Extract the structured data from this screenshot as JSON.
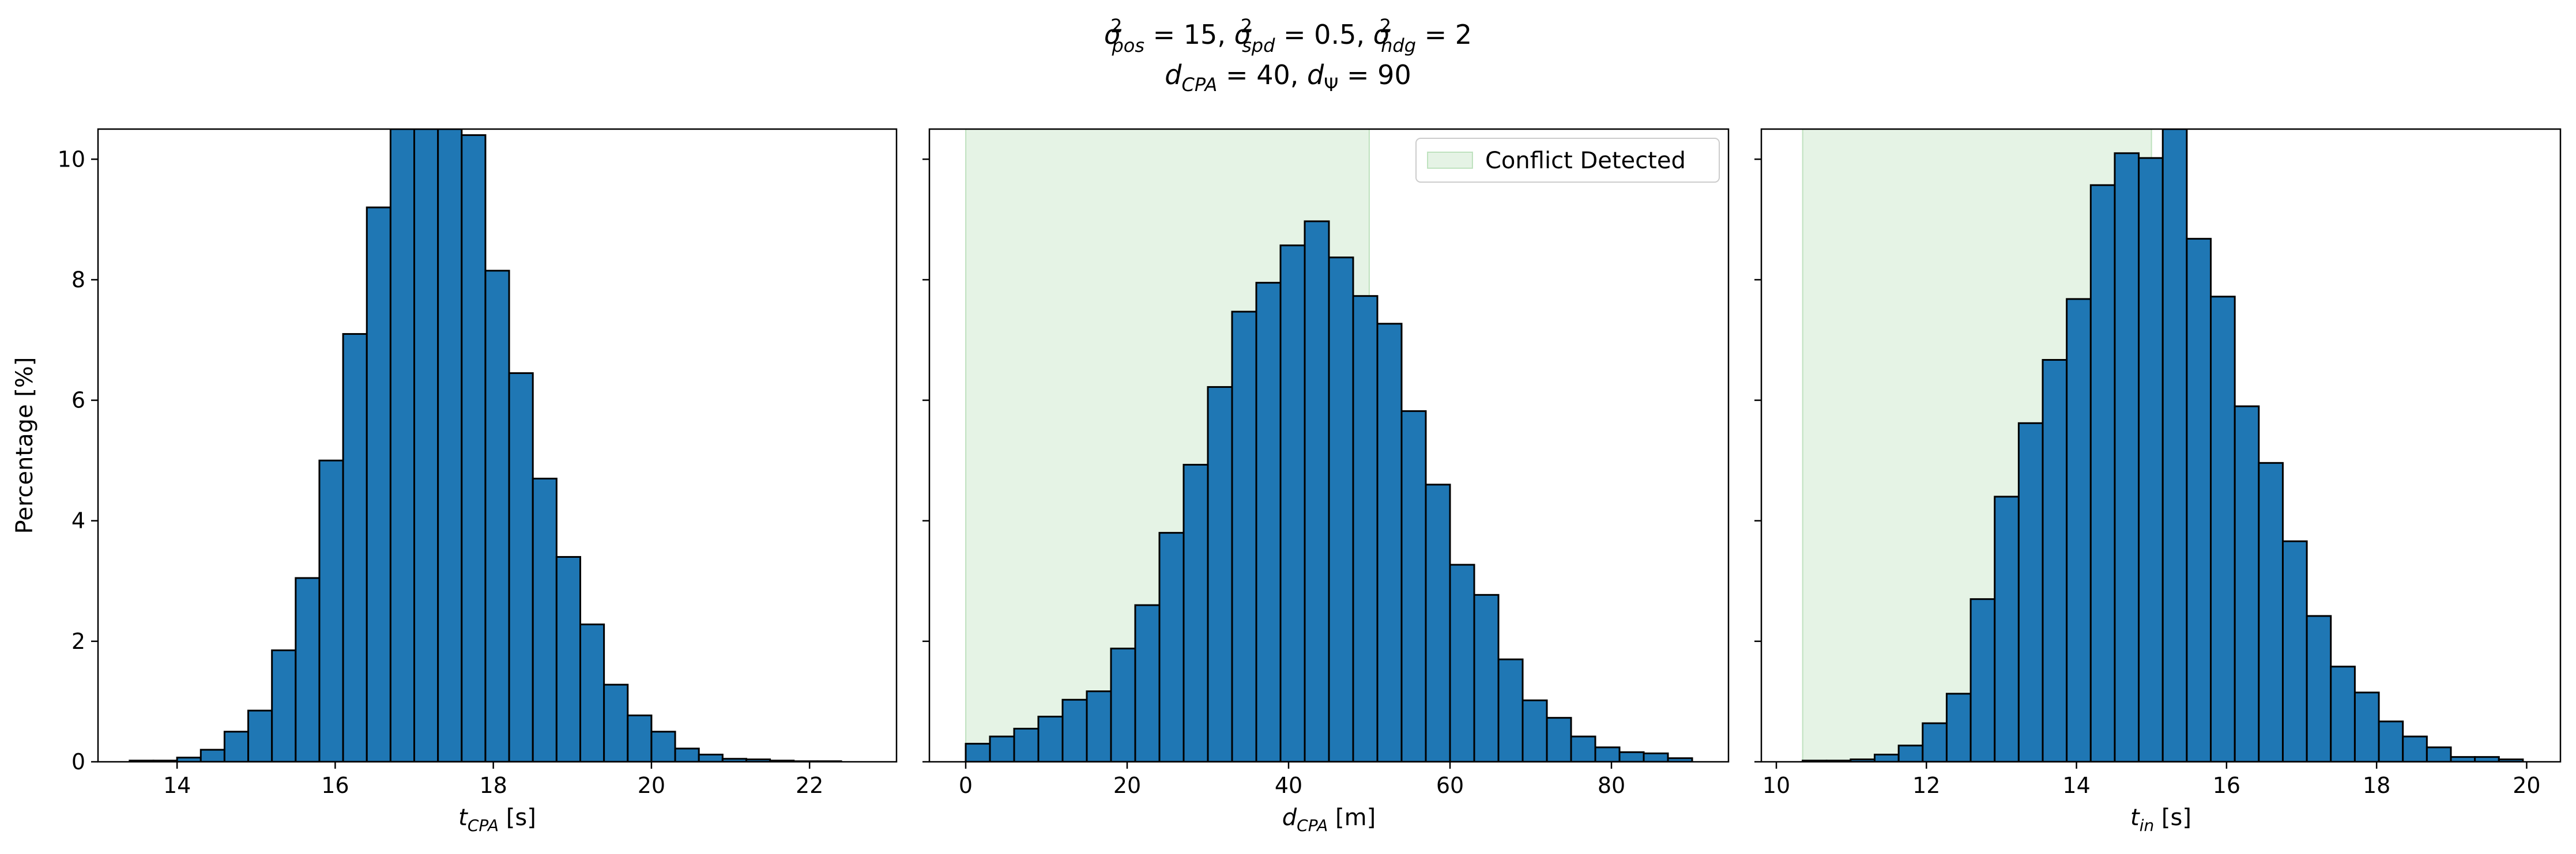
{
  "figure": {
    "title_line1": "σ²pos = 15, σ²spd = 0.5, σ²hdg = 2",
    "title_line2": "dCPA = 40, dΨ = 90"
  },
  "chart_data": [
    {
      "type": "bar",
      "title": "",
      "xlabel": "t_CPA [s]",
      "ylabel": "Percentage [%]",
      "xlim": [
        13.0,
        23.1
      ],
      "ylim": [
        0,
        10.5
      ],
      "xticks": [
        14,
        16,
        18,
        20,
        22
      ],
      "yticks": [
        0,
        2,
        4,
        6,
        8,
        10
      ],
      "grid": false,
      "bar_color": "#1f77b4",
      "bin_edges": [
        13.4,
        13.7,
        14.0,
        14.3,
        14.6,
        14.9,
        15.2,
        15.5,
        15.8,
        16.1,
        16.4,
        16.7,
        17.0,
        17.3,
        17.6,
        17.9,
        18.2,
        18.5,
        18.8,
        19.1,
        19.4,
        19.7,
        20.0,
        20.3,
        20.6,
        20.9,
        21.2,
        21.5,
        21.8,
        22.1,
        22.4
      ],
      "values": [
        0.02,
        0.02,
        0.07,
        0.2,
        0.5,
        0.85,
        1.85,
        3.05,
        5.0,
        7.1,
        9.2,
        10.5,
        10.5,
        10.5,
        10.4,
        8.15,
        6.45,
        4.7,
        3.4,
        2.28,
        1.28,
        0.77,
        0.5,
        0.22,
        0.12,
        0.05,
        0.04,
        0.02,
        0.01,
        0.01
      ]
    },
    {
      "type": "bar",
      "title": "",
      "xlabel": "d_CPA [m]",
      "ylabel": "",
      "xlim": [
        -4.5,
        94.5
      ],
      "ylim": [
        0,
        10.5
      ],
      "xticks": [
        0,
        20,
        40,
        60,
        80
      ],
      "yticks": [
        0,
        2,
        4,
        6,
        8,
        10
      ],
      "grid": false,
      "bar_color": "#1f77b4",
      "shaded_region": {
        "x0": 0,
        "x1": 50,
        "label": "Conflict Detected",
        "color": "#2ca02c"
      },
      "legend": {
        "position": "upper right",
        "entries": [
          "Conflict Detected"
        ]
      },
      "bin_edges": [
        0,
        3,
        6,
        9,
        12,
        15,
        18,
        21,
        24,
        27,
        30,
        33,
        36,
        39,
        42,
        45,
        48,
        51,
        54,
        57,
        60,
        63,
        66,
        69,
        72,
        75,
        78,
        81,
        84,
        87,
        90
      ],
      "values": [
        0.3,
        0.42,
        0.55,
        0.75,
        1.03,
        1.17,
        1.88,
        2.6,
        3.8,
        4.93,
        6.22,
        7.47,
        7.95,
        8.57,
        8.97,
        8.37,
        7.73,
        7.27,
        5.82,
        4.6,
        3.27,
        2.77,
        1.7,
        1.02,
        0.73,
        0.42,
        0.24,
        0.16,
        0.14,
        0.06
      ]
    },
    {
      "type": "bar",
      "title": "",
      "xlabel": "t_in [s]",
      "ylabel": "",
      "xlim": [
        9.8,
        20.45
      ],
      "ylim": [
        0,
        10.5
      ],
      "xticks": [
        10,
        12,
        14,
        16,
        18,
        20
      ],
      "yticks": [
        0,
        2,
        4,
        6,
        8,
        10
      ],
      "grid": false,
      "bar_color": "#1f77b4",
      "shaded_region": {
        "x0": 10.35,
        "x1": 15.0,
        "label": "Conflict Detected",
        "color": "#2ca02c"
      },
      "bin_edges": [
        10.35,
        10.67,
        10.99,
        11.31,
        11.63,
        11.95,
        12.27,
        12.59,
        12.91,
        13.23,
        13.55,
        13.87,
        14.19,
        14.51,
        14.83,
        15.15,
        15.47,
        15.79,
        16.11,
        16.43,
        16.75,
        17.07,
        17.39,
        17.71,
        18.03,
        18.35,
        18.67,
        18.99,
        19.31,
        19.63,
        19.95
      ],
      "values": [
        0.02,
        0.02,
        0.04,
        0.12,
        0.27,
        0.64,
        1.13,
        2.7,
        4.4,
        5.62,
        6.67,
        7.68,
        9.57,
        10.1,
        10.02,
        10.5,
        8.68,
        7.72,
        5.9,
        4.96,
        3.66,
        2.42,
        1.58,
        1.15,
        0.67,
        0.42,
        0.24,
        0.08,
        0.08,
        0.04
      ]
    }
  ]
}
